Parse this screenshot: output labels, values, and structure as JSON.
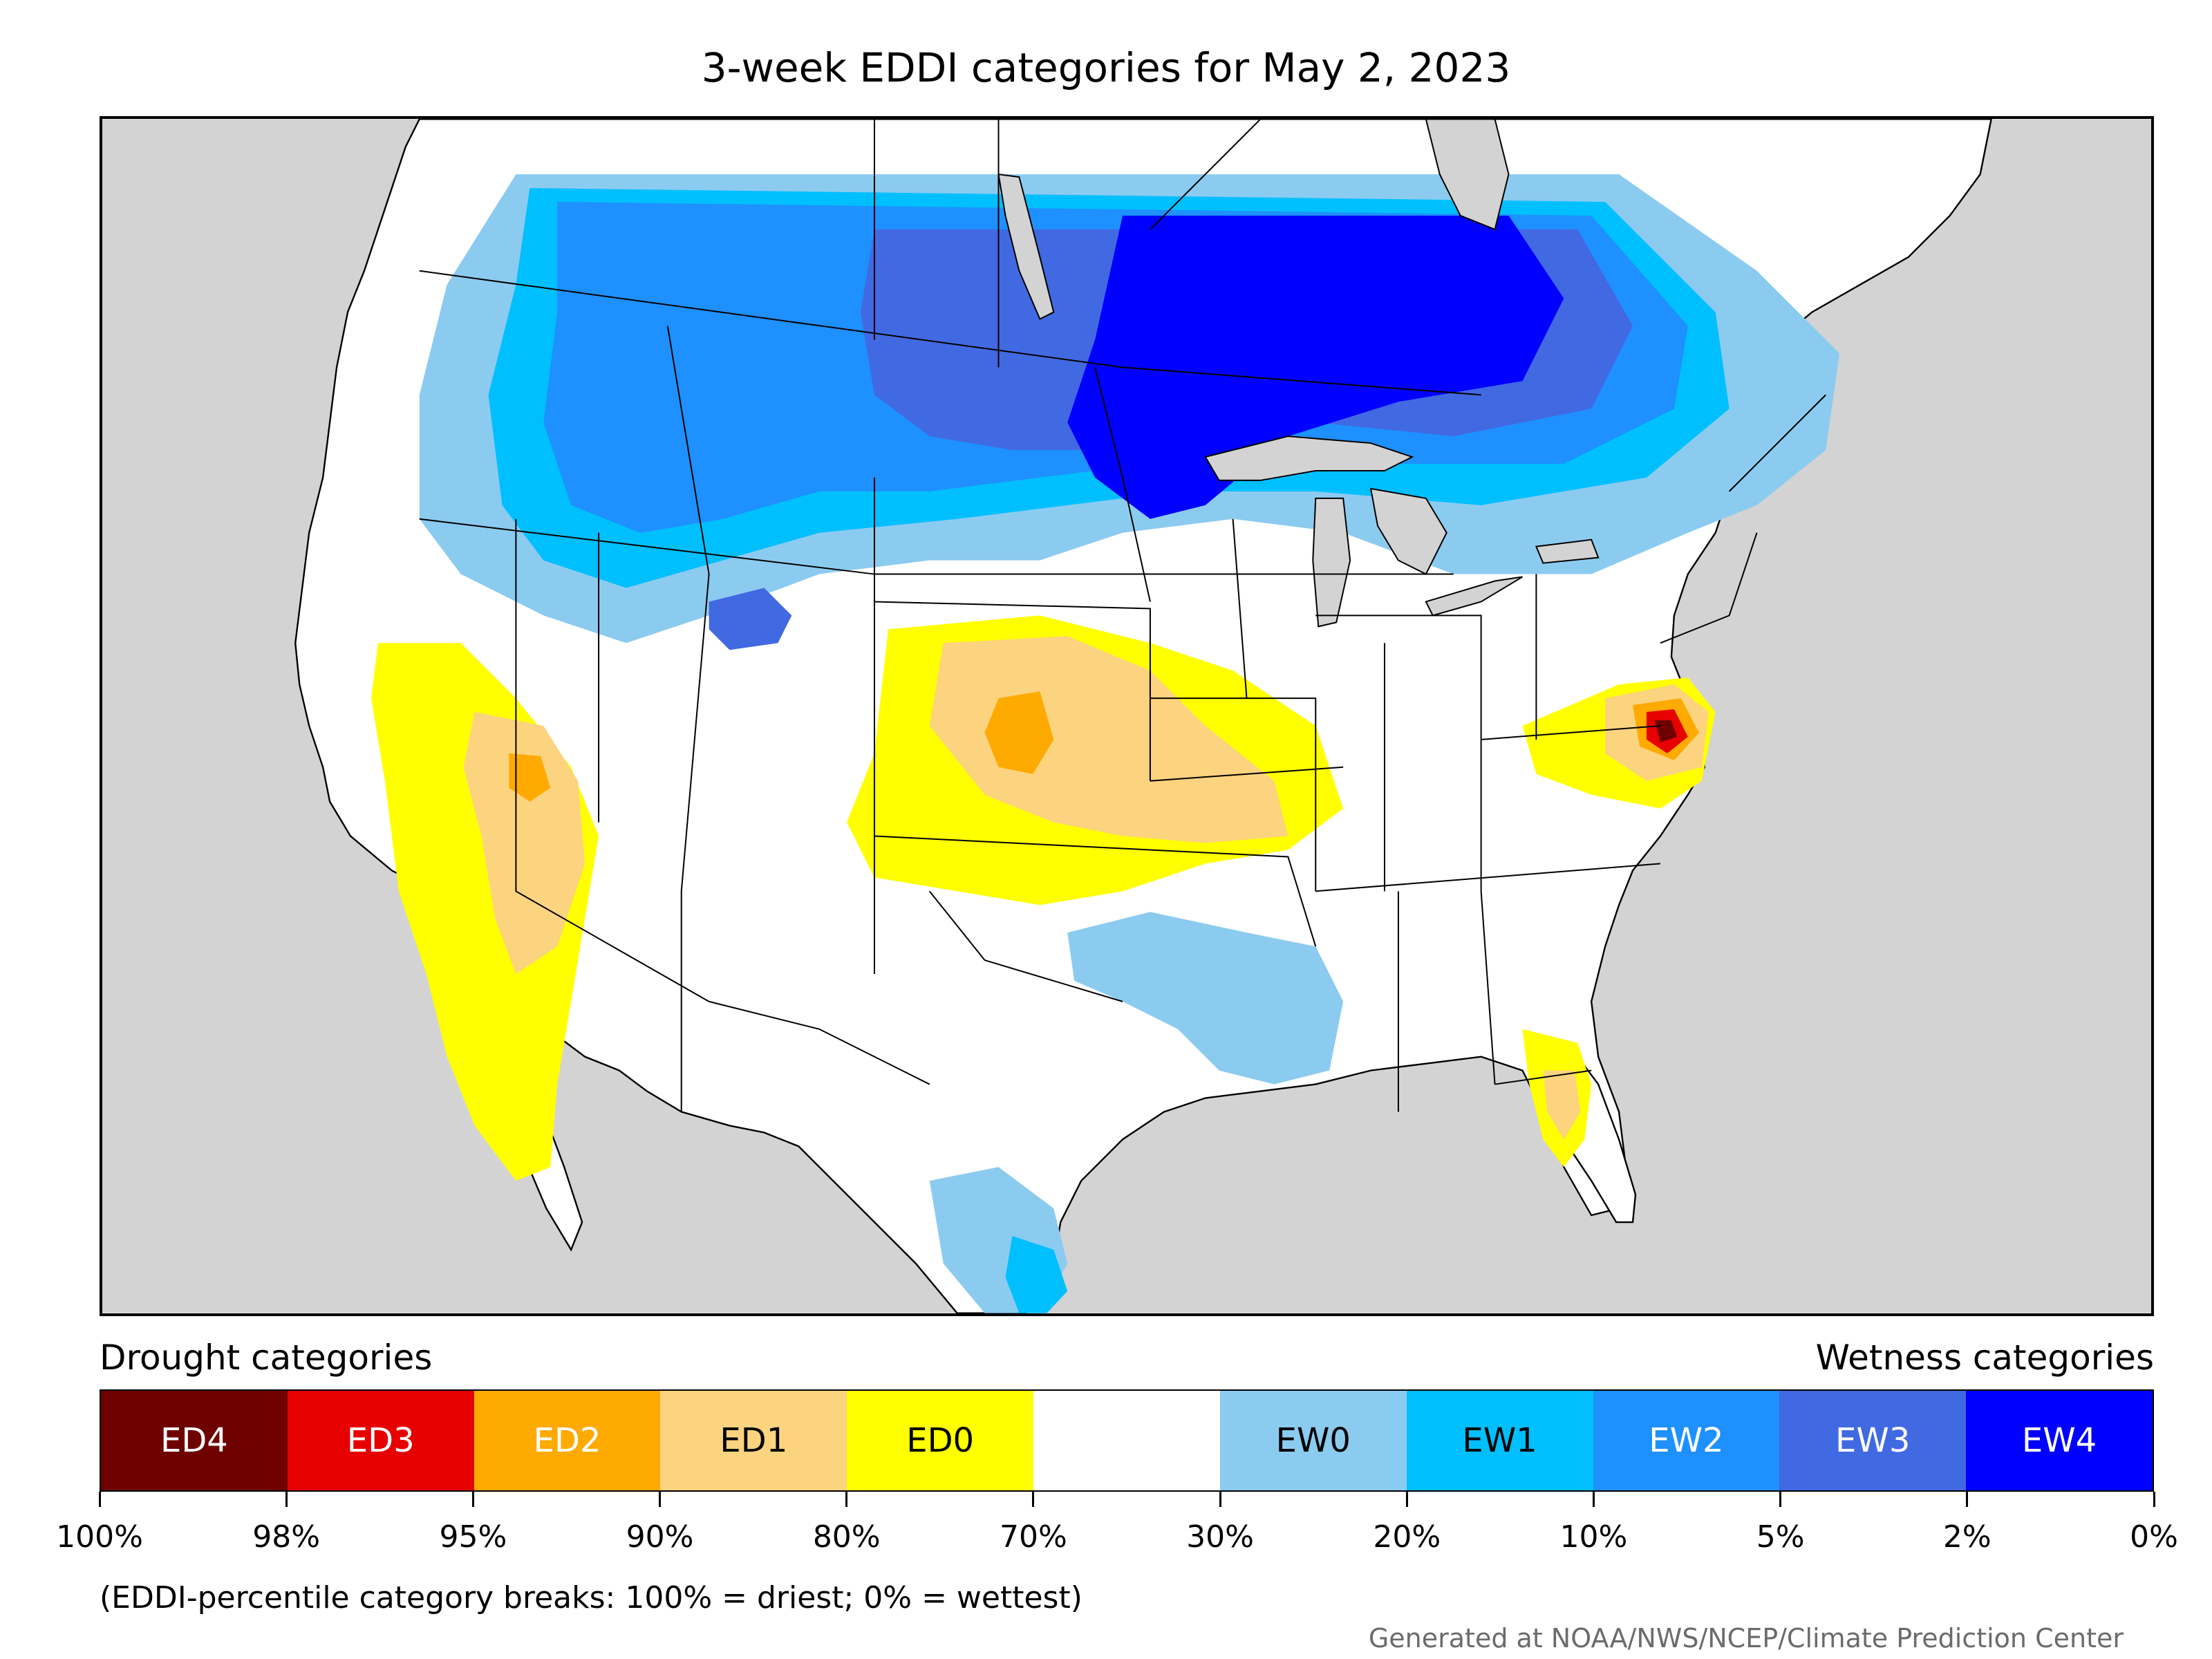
{
  "title": "3-week EDDI categories for May 2, 2023",
  "map": {
    "description_colors": {
      "background": "#d3d3d3",
      "land": "#ffffff",
      "borders": "#000000"
    }
  },
  "legend": {
    "drought_heading": "Drought categories",
    "wetness_heading": "Wetness categories",
    "categories": [
      {
        "label": "ED4",
        "color": "#6e0000",
        "text_color": "#ffffff"
      },
      {
        "label": "ED3",
        "color": "#e60000",
        "text_color": "#ffffff"
      },
      {
        "label": "ED2",
        "color": "#ffaa00",
        "text_color": "#ffffff"
      },
      {
        "label": "ED1",
        "color": "#fcd37f",
        "text_color": "#000000"
      },
      {
        "label": "ED0",
        "color": "#ffff00",
        "text_color": "#000000"
      },
      {
        "label": "",
        "color": "#ffffff",
        "text_color": "#000000"
      },
      {
        "label": "EW0",
        "color": "#8ccbf0",
        "text_color": "#000000"
      },
      {
        "label": "EW1",
        "color": "#00bfff",
        "text_color": "#000000"
      },
      {
        "label": "EW2",
        "color": "#1e90ff",
        "text_color": "#ffffff"
      },
      {
        "label": "EW3",
        "color": "#4169e1",
        "text_color": "#ffffff"
      },
      {
        "label": "EW4",
        "color": "#0000ff",
        "text_color": "#ffffff"
      }
    ],
    "ticks": [
      "100%",
      "98%",
      "95%",
      "90%",
      "80%",
      "70%",
      "30%",
      "20%",
      "10%",
      "5%",
      "2%",
      "0%"
    ]
  },
  "note": "(EDDI-percentile category breaks: 100% = driest; 0% = wettest)",
  "credit": "Generated at NOAA/NWS/NCEP/Climate Prediction Center"
}
